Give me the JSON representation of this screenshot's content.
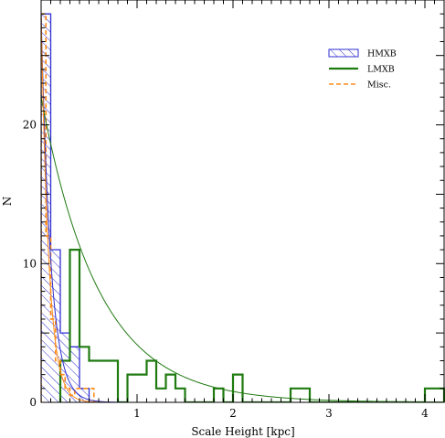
{
  "chart_data": {
    "type": "histogram",
    "title": "",
    "xlabel": "Scale Height [kpc]",
    "ylabel": "N",
    "xlim": [
      0,
      4.2
    ],
    "ylim": [
      0,
      29
    ],
    "xticks": [
      1,
      2,
      3,
      4
    ],
    "xtick_labels": [
      "1",
      "2",
      "3",
      "4"
    ],
    "yticks": [
      0,
      10,
      20
    ],
    "ytick_labels": [
      "0",
      "10",
      "20"
    ],
    "legend_position": "top-right",
    "series": [
      {
        "name": "HMXB",
        "style": "hatched-step",
        "color": "#2f2fd0",
        "edges": [
          0,
          0.1,
          0.2,
          0.3,
          0.4,
          0.5,
          0.6
        ],
        "counts": [
          28,
          11,
          5,
          4,
          1,
          0
        ]
      },
      {
        "name": "LMXB",
        "style": "step",
        "color": "#1f7a10",
        "edges": [
          0.2,
          0.3,
          0.4,
          0.5,
          0.6,
          0.8,
          0.9,
          1.1,
          1.2,
          1.3,
          1.4,
          1.5,
          1.6,
          1.8,
          1.9,
          2.0,
          2.1,
          2.2,
          2.6,
          2.8,
          4.0,
          4.2
        ],
        "counts": [
          3,
          11,
          4,
          3,
          3,
          0,
          2,
          3,
          1,
          2,
          1,
          0,
          0,
          1,
          0,
          2,
          0,
          0,
          1,
          0,
          1
        ]
      },
      {
        "name": "Misc.",
        "style": "dashed-step",
        "color": "#ff8c1a",
        "edges": [
          0,
          0.05,
          0.1,
          0.15,
          0.2,
          0.25,
          0.3,
          0.35,
          0.4,
          0.45,
          0.5,
          0.55,
          0.6
        ],
        "counts": [
          28,
          12,
          6,
          3,
          2,
          1,
          0.5,
          1,
          1,
          1,
          1,
          0
        ]
      }
    ],
    "fit_curves": [
      {
        "series": "HMXB",
        "amplitude": 28,
        "scale": 0.1,
        "color": "#2f2fd0"
      },
      {
        "series": "LMXB",
        "amplitude": 22,
        "scale": 0.6,
        "color": "#1f7a10"
      },
      {
        "series": "Misc.",
        "amplitude": 28,
        "scale": 0.08,
        "color": "#ff8c1a"
      }
    ]
  }
}
